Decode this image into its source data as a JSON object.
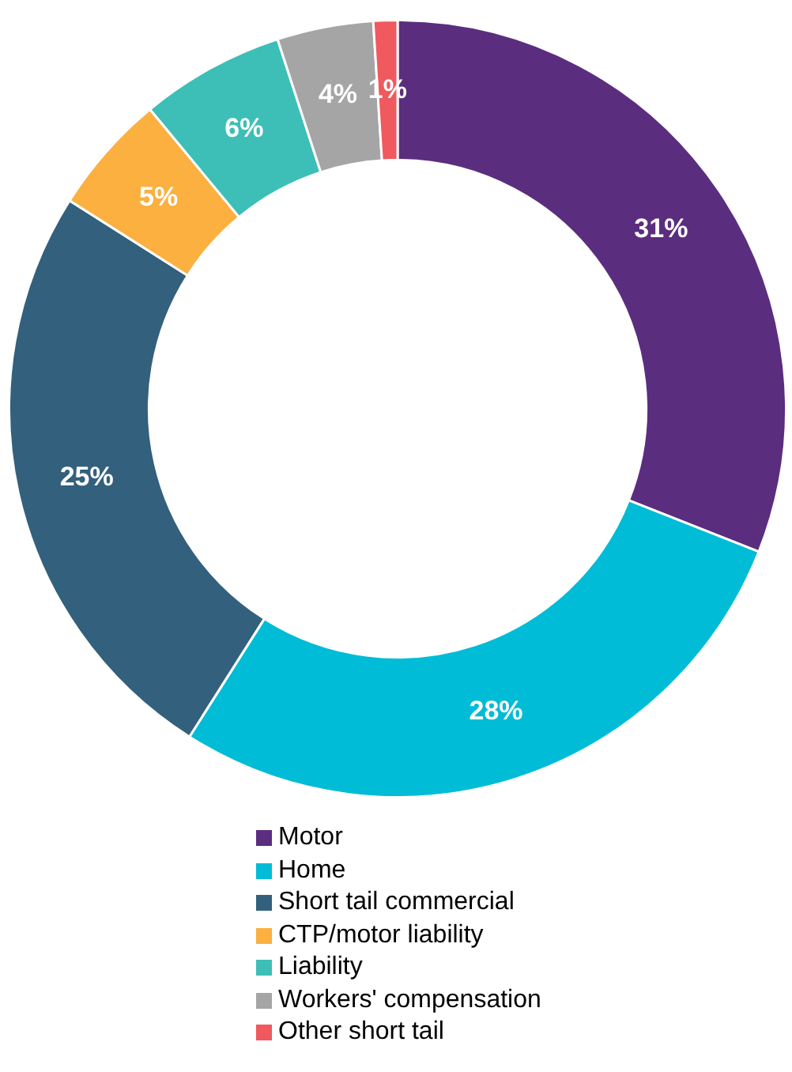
{
  "chart_data": {
    "type": "donut",
    "categories": [
      "Motor",
      "Home",
      "Short tail commercial",
      "CTP/motor liability",
      "Liability",
      "Workers' compensation",
      "Other short tail"
    ],
    "values": [
      31,
      28,
      25,
      5,
      6,
      4,
      1
    ],
    "colors": [
      "#5b2d7e",
      "#00bcd6",
      "#33607c",
      "#fbb040",
      "#3dbfb7",
      "#a5a5a5",
      "#f0595e"
    ],
    "value_labels": [
      "31%",
      "28%",
      "25%",
      "5%",
      "6%",
      "4%",
      "1%"
    ],
    "legend": "bottom"
  }
}
